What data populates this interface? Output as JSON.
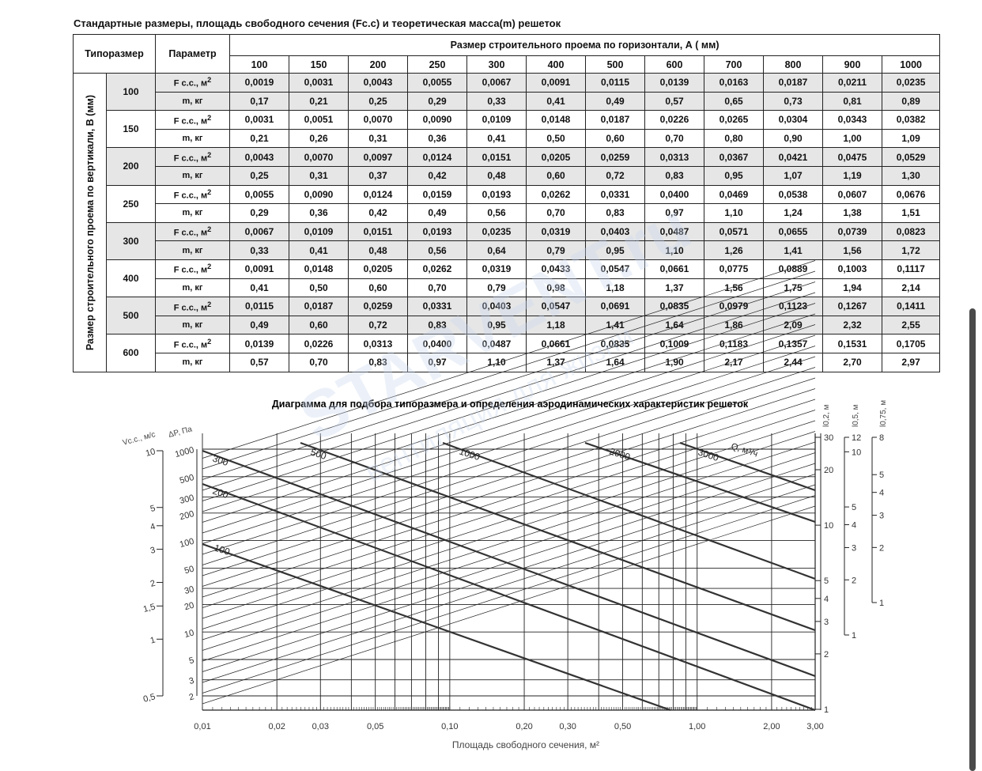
{
  "title": "Стандартные размеры, площадь свободного сечения (Fc.c) и теоретическая масса(m) решеток",
  "table": {
    "col_tiporazmer": "Типоразмер",
    "col_parameter": "Параметр",
    "horizontal_header": "Размер строительного проема по горизонтали, А ( мм)",
    "vertical_header": "Размер строительного проема по вертикали, В (мм)",
    "widths": [
      "100",
      "150",
      "200",
      "250",
      "300",
      "400",
      "500",
      "600",
      "700",
      "800",
      "900",
      "1000"
    ],
    "param_f": "F c.c., м",
    "param_f_sup": "2",
    "param_m": "m, кг",
    "rows": [
      {
        "size": "100",
        "f": [
          "0,0019",
          "0,0031",
          "0,0043",
          "0,0055",
          "0,0067",
          "0,0091",
          "0,0115",
          "0,0139",
          "0,0163",
          "0,0187",
          "0,0211",
          "0,0235"
        ],
        "m": [
          "0,17",
          "0,21",
          "0,25",
          "0,29",
          "0,33",
          "0,41",
          "0,49",
          "0,57",
          "0,65",
          "0,73",
          "0,81",
          "0,89"
        ]
      },
      {
        "size": "150",
        "f": [
          "0,0031",
          "0,0051",
          "0,0070",
          "0,0090",
          "0,0109",
          "0,0148",
          "0,0187",
          "0,0226",
          "0,0265",
          "0,0304",
          "0,0343",
          "0,0382"
        ],
        "m": [
          "0,21",
          "0,26",
          "0,31",
          "0,36",
          "0,41",
          "0,50",
          "0,60",
          "0,70",
          "0,80",
          "0,90",
          "1,00",
          "1,09"
        ]
      },
      {
        "size": "200",
        "f": [
          "0,0043",
          "0,0070",
          "0,0097",
          "0,0124",
          "0,0151",
          "0,0205",
          "0,0259",
          "0,0313",
          "0,0367",
          "0,0421",
          "0,0475",
          "0,0529"
        ],
        "m": [
          "0,25",
          "0,31",
          "0,37",
          "0,42",
          "0,48",
          "0,60",
          "0,72",
          "0,83",
          "0,95",
          "1,07",
          "1,19",
          "1,30"
        ]
      },
      {
        "size": "250",
        "f": [
          "0,0055",
          "0,0090",
          "0,0124",
          "0,0159",
          "0,0193",
          "0,0262",
          "0,0331",
          "0,0400",
          "0,0469",
          "0,0538",
          "0,0607",
          "0,0676"
        ],
        "m": [
          "0,29",
          "0,36",
          "0,42",
          "0,49",
          "0,56",
          "0,70",
          "0,83",
          "0,97",
          "1,10",
          "1,24",
          "1,38",
          "1,51"
        ]
      },
      {
        "size": "300",
        "f": [
          "0,0067",
          "0,0109",
          "0,0151",
          "0,0193",
          "0,0235",
          "0,0319",
          "0,0403",
          "0,0487",
          "0,0571",
          "0,0655",
          "0,0739",
          "0,0823"
        ],
        "m": [
          "0,33",
          "0,41",
          "0,48",
          "0,56",
          "0,64",
          "0,79",
          "0,95",
          "1,10",
          "1,26",
          "1,41",
          "1,56",
          "1,72"
        ]
      },
      {
        "size": "400",
        "f": [
          "0,0091",
          "0,0148",
          "0,0205",
          "0,0262",
          "0,0319",
          "0,0433",
          "0,0547",
          "0,0661",
          "0,0775",
          "0,0889",
          "0,1003",
          "0,1117"
        ],
        "m": [
          "0,41",
          "0,50",
          "0,60",
          "0,70",
          "0,79",
          "0,98",
          "1,18",
          "1,37",
          "1,56",
          "1,75",
          "1,94",
          "2,14"
        ]
      },
      {
        "size": "500",
        "f": [
          "0,0115",
          "0,0187",
          "0,0259",
          "0,0331",
          "0,0403",
          "0,0547",
          "0,0691",
          "0,0835",
          "0,0979",
          "0,1123",
          "0,1267",
          "0,1411"
        ],
        "m": [
          "0,49",
          "0,60",
          "0,72",
          "0,83",
          "0,95",
          "1,18",
          "1,41",
          "1,64",
          "1,86",
          "2,09",
          "2,32",
          "2,55"
        ]
      },
      {
        "size": "600",
        "f": [
          "0,0139",
          "0,0226",
          "0,0313",
          "0,0400",
          "0,0487",
          "0,0661",
          "0,0835",
          "0,1009",
          "0,1183",
          "0,1357",
          "0,1531",
          "0,1705"
        ],
        "m": [
          "0,57",
          "0,70",
          "0,83",
          "0,97",
          "1,10",
          "1,37",
          "1,64",
          "1,90",
          "2,17",
          "2,44",
          "2,70",
          "2,97"
        ]
      }
    ]
  },
  "diagram": {
    "title": "Диаграмма для подбора типоразмера и определения аэродинамических характеристик решеток",
    "xlabel": "Площадь свободного сечения, м²",
    "x_ticks": [
      "0,01",
      "0,02",
      "0,03",
      "0,05",
      "0,10",
      "0,20",
      "0,30",
      "0,50",
      "1,00",
      "2,00",
      "3,00"
    ],
    "v_label": "Vc.c., м/с",
    "v_ticks": [
      "10",
      "5",
      "4",
      "3",
      "2",
      "1,5",
      "1",
      "0,5"
    ],
    "dp_label": "ΔP, Па",
    "dp_ticks": [
      "1000",
      "500",
      "300",
      "200",
      "100",
      "50",
      "30",
      "20",
      "10",
      "5",
      "3",
      "2"
    ],
    "flow_label": "Q, м³/ч",
    "flow_labels": [
      "100",
      "200",
      "300",
      "500",
      "1000",
      "2000",
      "3000"
    ],
    "l02_label": "l0,2, м",
    "l02_ticks": [
      "30",
      "20",
      "10",
      "5",
      "4",
      "3",
      "2",
      "1"
    ],
    "l05_label": "l0,5, м",
    "l05_ticks": [
      "12",
      "10",
      "5",
      "4",
      "3",
      "2",
      "1"
    ],
    "l075_label": "l0,75, м",
    "l075_ticks": [
      "8",
      "5",
      "4",
      "3",
      "2",
      "1"
    ]
  },
  "watermark": {
    "brand": "STARVENT.ru",
    "tagline": "вентиляция для жизни"
  },
  "colors": {
    "shade": "#e6e6e6",
    "line": "#222222",
    "watermark": "#5b8fd6"
  }
}
